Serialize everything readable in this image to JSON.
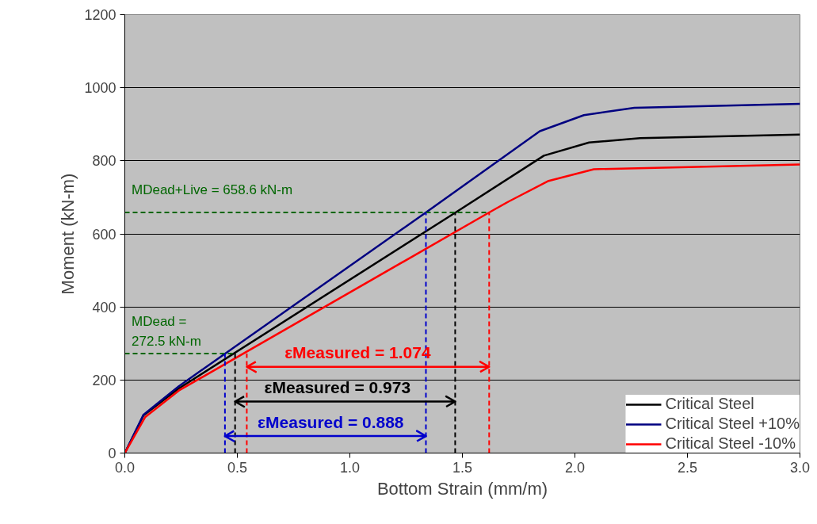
{
  "chart_data": {
    "type": "line",
    "xlabel": "Bottom Strain (mm/m)",
    "ylabel": "Moment (kN-m)",
    "xlim": [
      0,
      3.0
    ],
    "ylim": [
      0,
      1200
    ],
    "xticks": [
      {
        "value": 0,
        "label": "0.0"
      },
      0.5,
      {
        "value": 1,
        "label": "1.0"
      },
      1.5,
      {
        "value": 2,
        "label": "2.0"
      },
      2.5,
      {
        "value": 3,
        "label": "3.0"
      }
    ],
    "yticks": [
      0,
      200,
      400,
      600,
      800,
      1000,
      1200
    ],
    "grid": "y",
    "legend": "bottom right",
    "line_style": "solid",
    "series": [
      {
        "name": "Critical Steel",
        "color": "#000000",
        "x": [
          0,
          0.083,
          0.24,
          1.47,
          1.862,
          2.063,
          2.29,
          3.0
        ],
        "values": [
          0,
          103,
          177,
          658.6,
          814,
          850,
          862,
          872
        ]
      },
      {
        "name": "Critical Steel +10%",
        "color": "#000080",
        "x": [
          0,
          0.083,
          0.24,
          1.338,
          1.844,
          2.04,
          2.264,
          3.0
        ],
        "values": [
          0,
          105,
          183,
          658.6,
          881,
          925,
          945,
          956
        ]
      },
      {
        "name": "Critical Steel -10%",
        "color": "#ff0000",
        "x": [
          0,
          0.09,
          0.24,
          1.619,
          1.707,
          1.883,
          2.084,
          3.0
        ],
        "values": [
          0,
          98,
          171,
          658.6,
          689,
          745,
          777,
          790
        ]
      },
      {
        "color": "#006600",
        "line_style": "dashed",
        "x": [
          0,
          1.619
        ],
        "values": [
          658.6,
          658.6
        ]
      },
      {
        "color": "#006600",
        "line_style": "dashed",
        "x": [
          0,
          0.49
        ],
        "values": [
          272.5,
          272.5
        ]
      },
      {
        "color": "#0000cc",
        "line_style": "dashed",
        "x": [
          0.445,
          0.445
        ],
        "values": [
          0,
          272.5
        ]
      },
      {
        "color": "#000000",
        "line_style": "dashed",
        "x": [
          0.49,
          0.49
        ],
        "values": [
          0,
          272.5
        ]
      },
      {
        "color": "#ff0000",
        "line_style": "dashed",
        "x": [
          0.542,
          0.542
        ],
        "values": [
          0,
          272.5
        ]
      },
      {
        "color": "#0000cc",
        "line_style": "dashed",
        "x": [
          1.338,
          1.338
        ],
        "values": [
          0,
          658.6
        ]
      },
      {
        "color": "#000000",
        "line_style": "dashed",
        "x": [
          1.468,
          1.468
        ],
        "values": [
          0,
          658.6
        ]
      },
      {
        "color": "#ff0000",
        "line_style": "dashed",
        "x": [
          1.619,
          1.619
        ],
        "values": [
          0,
          658.6
        ]
      },
      {
        "color": "#ff0000",
        "x": [
          0.582,
          0.542,
          0.582,
          0.542,
          1.619,
          1.579,
          1.619,
          1.579
        ],
        "values": [
          250,
          236,
          222,
          236,
          236,
          250,
          236,
          222
        ]
      },
      {
        "color": "#000000",
        "x": [
          0.53,
          0.49,
          0.53,
          0.49,
          1.468,
          1.428,
          1.468,
          1.428
        ],
        "values": [
          155,
          141,
          127,
          141,
          141,
          155,
          141,
          127
        ]
      },
      {
        "color": "#0000cc",
        "x": [
          0.485,
          0.445,
          0.485,
          0.445,
          1.338,
          1.298,
          1.338,
          1.298
        ],
        "values": [
          60.5,
          46.5,
          32.5,
          46.5,
          46.5,
          60.5,
          46.5,
          32.5
        ]
      }
    ],
    "annotations": [
      "MDead+Live = 658.6 kN-m",
      "MDead =\n272.5 kN-m",
      "εMeasured = 1.074",
      "εMeasured = 0.973",
      "εMeasured = 0.888"
    ]
  }
}
